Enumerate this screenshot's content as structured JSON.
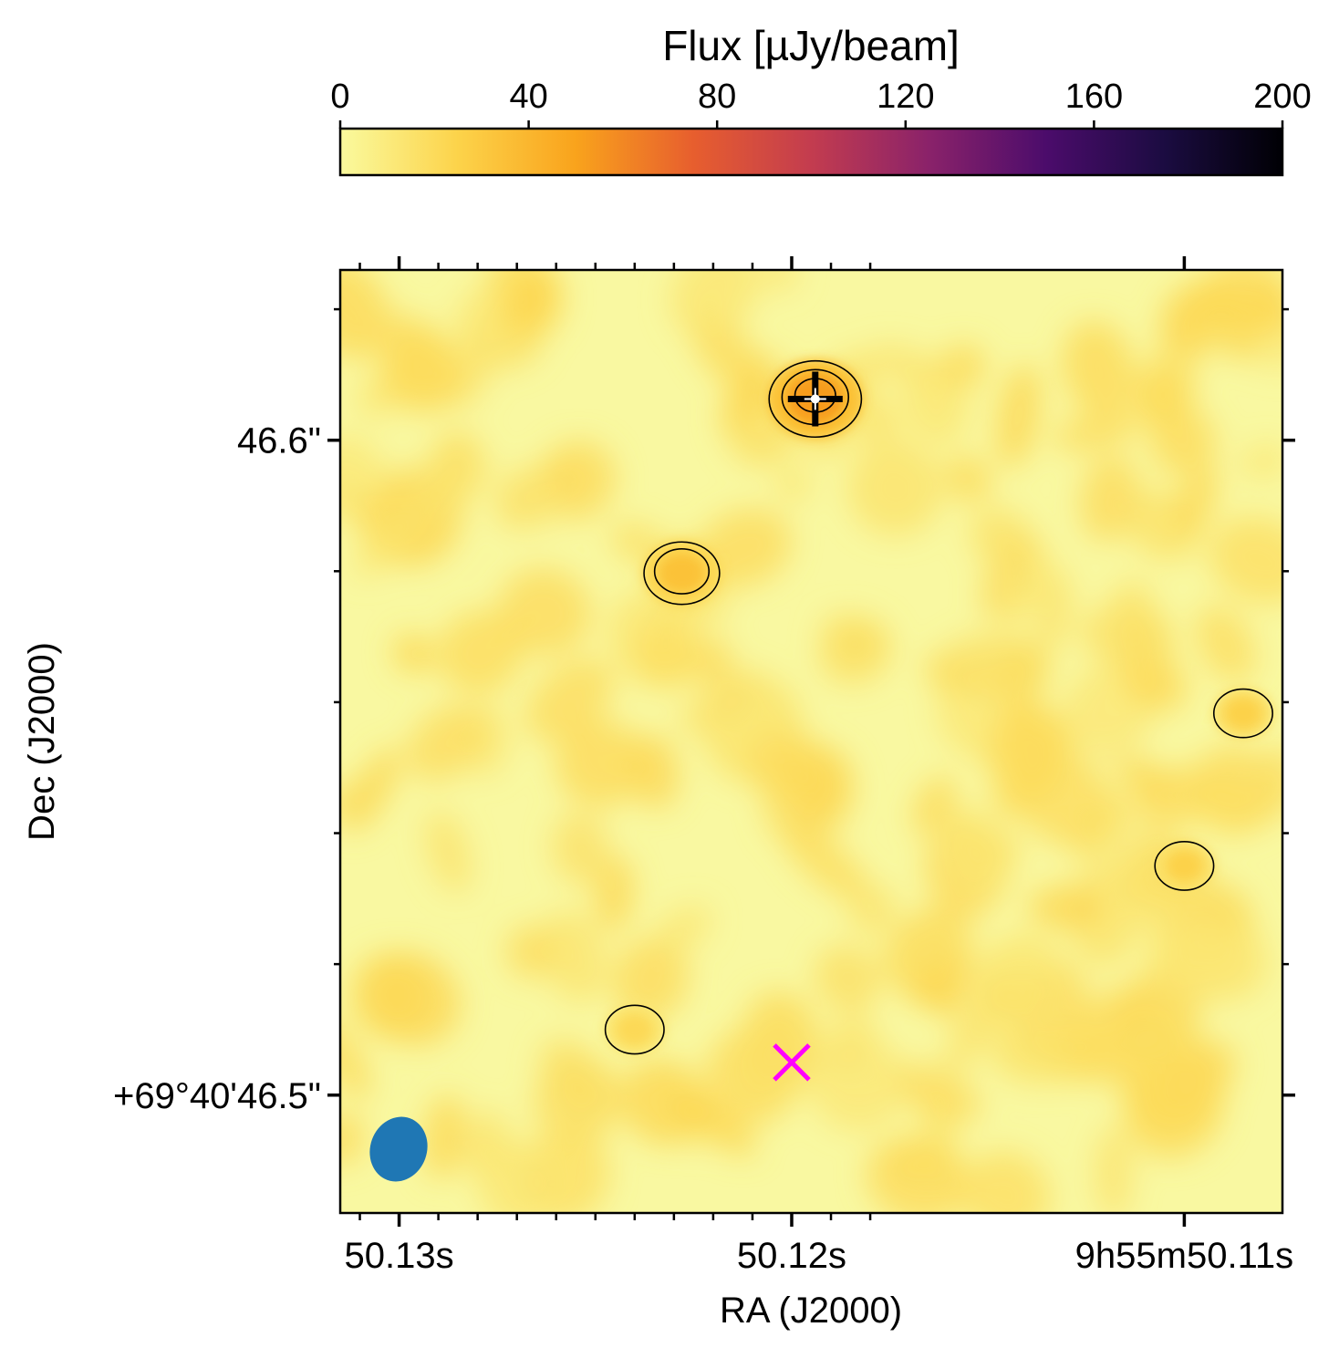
{
  "chart_data": {
    "type": "heatmap",
    "colorbar": {
      "title": "Flux [µJy/beam]",
      "colormap": "inferno_r",
      "range": [
        0,
        200
      ],
      "ticks": [
        0,
        40,
        80,
        120,
        160,
        200
      ],
      "tick_labels": [
        "0",
        "40",
        "80",
        "120",
        "160",
        "200"
      ],
      "colors": [
        "#fafa9e",
        "#fcd34a",
        "#f9a31c",
        "#e75e2e",
        "#c33c4f",
        "#8a226a",
        "#4b0c6b",
        "#1b0c41",
        "#000004"
      ]
    },
    "xlabel": "RA (J2000)",
    "ylabel": "Dec (J2000)",
    "x_tick_labels": [
      "50.13s",
      "50.12s",
      "9h55m50.11s"
    ],
    "y_tick_labels": [
      "46.6\"",
      "+69°40'46.5\""
    ],
    "xlim_sec": [
      50.1315,
      50.1075
    ],
    "ylim_arcsec": [
      46.482,
      46.626
    ],
    "background_level": 12,
    "sources": [
      {
        "ra_sec": 50.1194,
        "dec_arcsec": 46.6063,
        "peak": 62,
        "contours": 3,
        "marker": "plus",
        "name": ""
      },
      {
        "ra_sec": 50.1228,
        "dec_arcsec": 46.5797,
        "peak": 40,
        "contours": 2,
        "marker": "",
        "name": ""
      },
      {
        "ra_sec": 50.1085,
        "dec_arcsec": 46.5583,
        "peak": 30,
        "contours": 1,
        "marker": "",
        "name": ""
      },
      {
        "ra_sec": 50.11,
        "dec_arcsec": 46.535,
        "peak": 30,
        "contours": 1,
        "marker": "",
        "name": ""
      },
      {
        "ra_sec": 50.124,
        "dec_arcsec": 46.51,
        "peak": 25,
        "contours": 1,
        "marker": "",
        "name": ""
      }
    ],
    "markers": [
      {
        "type": "x",
        "ra_sec": 50.12,
        "dec_arcsec": 46.505,
        "color": "#ff00ff"
      },
      {
        "type": "plus",
        "ra_sec": 50.1194,
        "dec_arcsec": 46.6063,
        "color": "#000000"
      }
    ],
    "beam": {
      "color": "#1f77b4"
    }
  }
}
